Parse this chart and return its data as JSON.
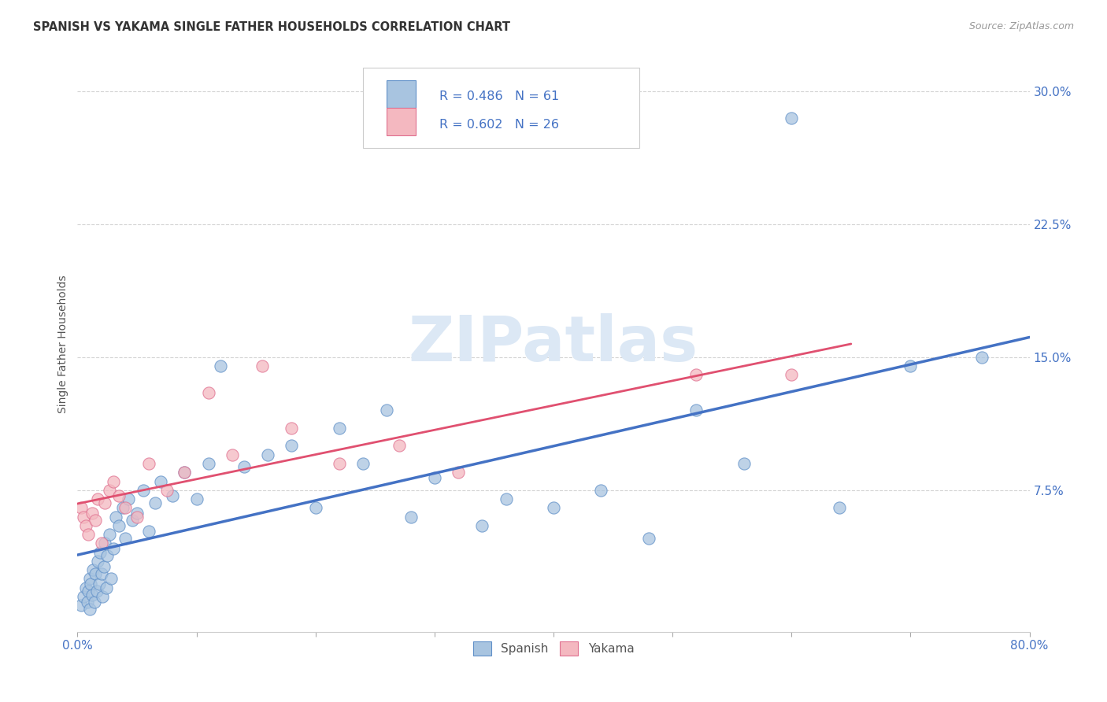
{
  "title": "SPANISH VS YAKAMA SINGLE FATHER HOUSEHOLDS CORRELATION CHART",
  "source": "Source: ZipAtlas.com",
  "ylabel": "Single Father Households",
  "xlim": [
    0.0,
    0.8
  ],
  "ylim": [
    -0.005,
    0.32
  ],
  "xticks": [
    0.0,
    0.1,
    0.2,
    0.3,
    0.4,
    0.5,
    0.6,
    0.7,
    0.8
  ],
  "xtick_labels": [
    "0.0%",
    "",
    "",
    "",
    "",
    "",
    "",
    "",
    "80.0%"
  ],
  "yticks": [
    0.075,
    0.15,
    0.225,
    0.3
  ],
  "ytick_labels": [
    "7.5%",
    "15.0%",
    "22.5%",
    "30.0%"
  ],
  "spanish_R": 0.486,
  "spanish_N": 61,
  "yakama_R": 0.602,
  "yakama_N": 26,
  "spanish_fill": "#a8c4e0",
  "yakama_fill": "#f4b8c0",
  "spanish_edge": "#6090c8",
  "yakama_edge": "#e07090",
  "spanish_line_color": "#4472c4",
  "yakama_line_color": "#e05070",
  "legend_text_color": "#4472c4",
  "background_color": "#ffffff",
  "watermark_color": "#dce8f5",
  "grid_color": "#c8c8c8",
  "title_color": "#333333",
  "source_color": "#999999",
  "ylabel_color": "#555555",
  "tick_label_color": "#4472c4",
  "spanish_x": [
    0.003,
    0.005,
    0.007,
    0.008,
    0.009,
    0.01,
    0.01,
    0.011,
    0.012,
    0.013,
    0.014,
    0.015,
    0.016,
    0.017,
    0.018,
    0.019,
    0.02,
    0.021,
    0.022,
    0.023,
    0.024,
    0.025,
    0.027,
    0.028,
    0.03,
    0.032,
    0.035,
    0.038,
    0.04,
    0.043,
    0.046,
    0.05,
    0.055,
    0.06,
    0.065,
    0.07,
    0.08,
    0.09,
    0.1,
    0.11,
    0.12,
    0.14,
    0.16,
    0.18,
    0.2,
    0.22,
    0.24,
    0.26,
    0.28,
    0.3,
    0.34,
    0.36,
    0.4,
    0.44,
    0.48,
    0.52,
    0.56,
    0.6,
    0.64,
    0.7,
    0.76
  ],
  "spanish_y": [
    0.01,
    0.015,
    0.02,
    0.012,
    0.018,
    0.025,
    0.008,
    0.022,
    0.016,
    0.03,
    0.012,
    0.028,
    0.018,
    0.035,
    0.022,
    0.04,
    0.028,
    0.015,
    0.032,
    0.045,
    0.02,
    0.038,
    0.05,
    0.025,
    0.042,
    0.06,
    0.055,
    0.065,
    0.048,
    0.07,
    0.058,
    0.062,
    0.075,
    0.052,
    0.068,
    0.08,
    0.072,
    0.085,
    0.07,
    0.09,
    0.145,
    0.088,
    0.095,
    0.1,
    0.065,
    0.11,
    0.09,
    0.12,
    0.06,
    0.082,
    0.055,
    0.07,
    0.065,
    0.075,
    0.048,
    0.12,
    0.09,
    0.285,
    0.065,
    0.145,
    0.15
  ],
  "yakama_x": [
    0.003,
    0.005,
    0.007,
    0.009,
    0.012,
    0.015,
    0.017,
    0.02,
    0.023,
    0.027,
    0.03,
    0.035,
    0.04,
    0.05,
    0.06,
    0.075,
    0.09,
    0.11,
    0.13,
    0.155,
    0.18,
    0.22,
    0.27,
    0.32,
    0.52,
    0.6
  ],
  "yakama_y": [
    0.065,
    0.06,
    0.055,
    0.05,
    0.062,
    0.058,
    0.07,
    0.045,
    0.068,
    0.075,
    0.08,
    0.072,
    0.065,
    0.06,
    0.09,
    0.075,
    0.085,
    0.13,
    0.095,
    0.145,
    0.11,
    0.09,
    0.1,
    0.085,
    0.14,
    0.14
  ]
}
